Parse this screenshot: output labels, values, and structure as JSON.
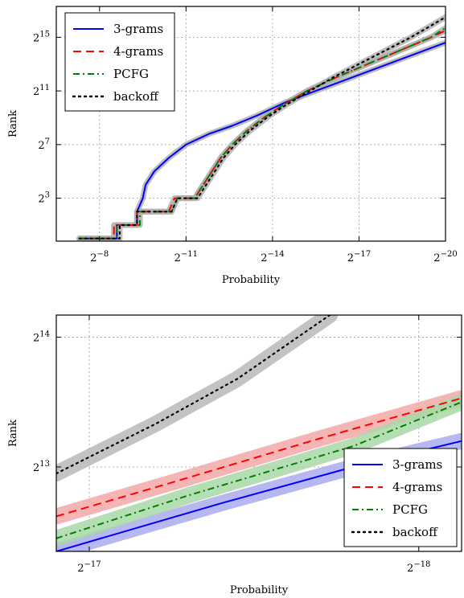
{
  "chart_data": [
    {
      "type": "line",
      "xlabel": "Probability",
      "ylabel": "Rank",
      "x_axis": "log2 probability, reversed (values shown as exponents of 2)",
      "xlim_exp": [
        -6.5,
        -20
      ],
      "ylim_exp": [
        -0.2,
        17.3
      ],
      "x_ticks": [
        {
          "base": "2",
          "exp": "−8",
          "v": -8
        },
        {
          "base": "2",
          "exp": "−11",
          "v": -11
        },
        {
          "base": "2",
          "exp": "−14",
          "v": -14
        },
        {
          "base": "2",
          "exp": "−17",
          "v": -17
        },
        {
          "base": "2",
          "exp": "−20",
          "v": -20
        }
      ],
      "y_ticks": [
        {
          "base": "2",
          "exp": "3",
          "v": 3
        },
        {
          "base": "2",
          "exp": "7",
          "v": 7
        },
        {
          "base": "2",
          "exp": "11",
          "v": 11
        },
        {
          "base": "2",
          "exp": "15",
          "v": 15
        }
      ],
      "grid": true,
      "legend": "top-left",
      "series": [
        {
          "name": "3-grams",
          "color": "#0000ff",
          "style": "solid",
          "band": "#b0b0b0",
          "points": [
            [
              -7.3,
              0
            ],
            [
              -8.6,
              0
            ],
            [
              -8.6,
              1
            ],
            [
              -9.3,
              1
            ],
            [
              -9.3,
              2
            ],
            [
              -9.5,
              3
            ],
            [
              -9.6,
              4
            ],
            [
              -9.9,
              5
            ],
            [
              -10.4,
              6
            ],
            [
              -11.0,
              7
            ],
            [
              -11.8,
              7.8
            ],
            [
              -12.6,
              8.4
            ],
            [
              -13.5,
              9.2
            ],
            [
              -14.5,
              10.2
            ],
            [
              -15.5,
              11.0
            ],
            [
              -16.5,
              11.8
            ],
            [
              -17.5,
              12.6
            ],
            [
              -18.5,
              13.4
            ],
            [
              -19.5,
              14.2
            ],
            [
              -20,
              14.6
            ]
          ]
        },
        {
          "name": "4-grams",
          "color": "#ff0000",
          "style": "dashed",
          "band": "#b0b0b0",
          "points": [
            [
              -7.3,
              0
            ],
            [
              -8.5,
              0
            ],
            [
              -8.5,
              1
            ],
            [
              -9.3,
              1
            ],
            [
              -9.3,
              2
            ],
            [
              -10.4,
              2
            ],
            [
              -10.6,
              3
            ],
            [
              -11.3,
              3
            ],
            [
              -11.6,
              4
            ],
            [
              -11.9,
              5
            ],
            [
              -12.2,
              6
            ],
            [
              -12.6,
              7
            ],
            [
              -13.1,
              8
            ],
            [
              -13.7,
              9
            ],
            [
              -14.4,
              10
            ],
            [
              -15.2,
              11
            ],
            [
              -16.2,
              12
            ],
            [
              -17.3,
              13
            ],
            [
              -18.4,
              14
            ],
            [
              -19.5,
              15
            ],
            [
              -20,
              15.5
            ]
          ]
        },
        {
          "name": "PCFG",
          "color": "#008000",
          "style": "dashdot",
          "band": "#b0b0b0",
          "points": [
            [
              -7.3,
              0
            ],
            [
              -8.6,
              0
            ],
            [
              -8.6,
              1
            ],
            [
              -9.4,
              1
            ],
            [
              -9.4,
              2
            ],
            [
              -10.5,
              2
            ],
            [
              -10.7,
              3
            ],
            [
              -11.3,
              3
            ],
            [
              -11.6,
              4
            ],
            [
              -11.9,
              5
            ],
            [
              -12.2,
              6
            ],
            [
              -12.6,
              7
            ],
            [
              -13.1,
              8
            ],
            [
              -13.7,
              9
            ],
            [
              -14.4,
              10
            ],
            [
              -15.2,
              11
            ],
            [
              -16.2,
              12
            ],
            [
              -17.3,
              13
            ],
            [
              -18.4,
              14
            ],
            [
              -19.5,
              15
            ],
            [
              -20,
              15.7
            ]
          ]
        },
        {
          "name": "backoff",
          "color": "#000000",
          "style": "dotted",
          "band": "#b0b0b0",
          "points": [
            [
              -7.3,
              0
            ],
            [
              -8.7,
              0
            ],
            [
              -8.7,
              1
            ],
            [
              -9.3,
              1
            ],
            [
              -9.3,
              2
            ],
            [
              -10.5,
              2
            ],
            [
              -10.7,
              3
            ],
            [
              -11.4,
              3
            ],
            [
              -11.7,
              4
            ],
            [
              -12.0,
              5
            ],
            [
              -12.3,
              6
            ],
            [
              -12.7,
              7
            ],
            [
              -13.2,
              8
            ],
            [
              -13.8,
              9
            ],
            [
              -14.5,
              10
            ],
            [
              -15.3,
              11
            ],
            [
              -16.1,
              12
            ],
            [
              -17.0,
              13
            ],
            [
              -17.9,
              14
            ],
            [
              -18.8,
              15
            ],
            [
              -19.6,
              16
            ],
            [
              -20,
              16.5
            ]
          ]
        }
      ]
    },
    {
      "type": "line",
      "xlabel": "Probability",
      "ylabel": "Rank",
      "x_axis": "log2 probability, reversed (values shown as exponents of 2)",
      "xlim_exp": [
        -16.9,
        -18.13
      ],
      "ylim_exp": [
        12.35,
        14.17
      ],
      "x_ticks": [
        {
          "base": "2",
          "exp": "−17",
          "v": -17
        },
        {
          "base": "2",
          "exp": "−18",
          "v": -18
        }
      ],
      "y_ticks": [
        {
          "base": "2",
          "exp": "13",
          "v": 13
        },
        {
          "base": "2",
          "exp": "14",
          "v": 14
        }
      ],
      "grid": true,
      "legend": "bottom-right",
      "series": [
        {
          "name": "3-grams",
          "color": "#0000ff",
          "style": "solid",
          "band": "#aaaaee",
          "points": [
            [
              -16.9,
              12.35
            ],
            [
              -17.4,
              12.72
            ],
            [
              -17.8,
              13.0
            ],
            [
              -18.13,
              13.2
            ]
          ]
        },
        {
          "name": "4-grams",
          "color": "#ff0000",
          "style": "dashed",
          "band": "#f4a8a8",
          "points": [
            [
              -16.9,
              12.62
            ],
            [
              -17.25,
              12.88
            ],
            [
              -17.7,
              13.22
            ],
            [
              -18.13,
              13.53
            ]
          ]
        },
        {
          "name": "PCFG",
          "color": "#008000",
          "style": "dashdot",
          "band": "#a8d8a8",
          "points": [
            [
              -16.9,
              12.45
            ],
            [
              -17.3,
              12.78
            ],
            [
              -17.8,
              13.16
            ],
            [
              -18.13,
              13.5
            ]
          ]
        },
        {
          "name": "backoff",
          "color": "#000000",
          "style": "dotted",
          "band": "#b8b8b8",
          "points": [
            [
              -16.9,
              12.95
            ],
            [
              -17.2,
              13.33
            ],
            [
              -17.45,
              13.68
            ],
            [
              -17.73,
              14.17
            ]
          ]
        }
      ]
    }
  ]
}
